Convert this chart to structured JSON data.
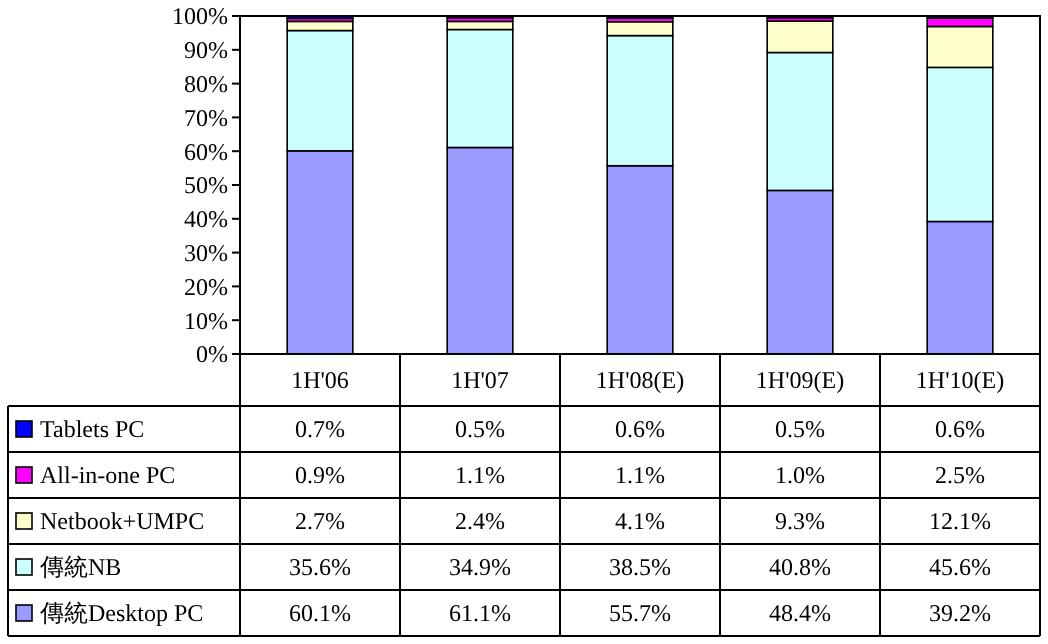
{
  "chart_data": {
    "type": "bar",
    "stacked": true,
    "categories": [
      "1H'06",
      "1H'07",
      "1H'08(E)",
      "1H'09(E)",
      "1H'10(E)"
    ],
    "ylim": [
      0,
      100
    ],
    "yticks": [
      {
        "value": 0,
        "label": "0%"
      },
      {
        "value": 10,
        "label": "10%"
      },
      {
        "value": 20,
        "label": "20%"
      },
      {
        "value": 30,
        "label": "30%"
      },
      {
        "value": 40,
        "label": "40%"
      },
      {
        "value": 50,
        "label": "50%"
      },
      {
        "value": 60,
        "label": "60%"
      },
      {
        "value": 70,
        "label": "70%"
      },
      {
        "value": 80,
        "label": "80%"
      },
      {
        "value": 90,
        "label": "90%"
      },
      {
        "value": 100,
        "label": "100%"
      }
    ],
    "grid": false,
    "legend": "bottom",
    "series": [
      {
        "name": "傳統Desktop PC",
        "color": "#9999ff",
        "values": [
          60.1,
          61.1,
          55.7,
          48.4,
          39.2
        ],
        "value_labels": [
          "60.1%",
          "61.1%",
          "55.7%",
          "48.4%",
          "39.2%"
        ]
      },
      {
        "name": "傳統NB",
        "color": "#ccffff",
        "values": [
          35.6,
          34.9,
          38.5,
          40.8,
          45.6
        ],
        "value_labels": [
          "35.6%",
          "34.9%",
          "38.5%",
          "40.8%",
          "45.6%"
        ]
      },
      {
        "name": "Netbook+UMPC",
        "color": "#ffffcc",
        "values": [
          2.7,
          2.4,
          4.1,
          9.3,
          12.1
        ],
        "value_labels": [
          "2.7%",
          "2.4%",
          "4.1%",
          "9.3%",
          "12.1%"
        ]
      },
      {
        "name": "All-in-one PC",
        "color": "#ff00ff",
        "values": [
          0.9,
          1.1,
          1.1,
          1.0,
          2.5
        ],
        "value_labels": [
          "0.9%",
          "1.1%",
          "1.1%",
          "1.0%",
          "2.5%"
        ]
      },
      {
        "name": "Tablets PC",
        "color": "#0000ff",
        "values": [
          0.7,
          0.5,
          0.6,
          0.5,
          0.6
        ],
        "value_labels": [
          "0.7%",
          "0.5%",
          "0.6%",
          "0.5%",
          "0.6%"
        ]
      }
    ]
  }
}
